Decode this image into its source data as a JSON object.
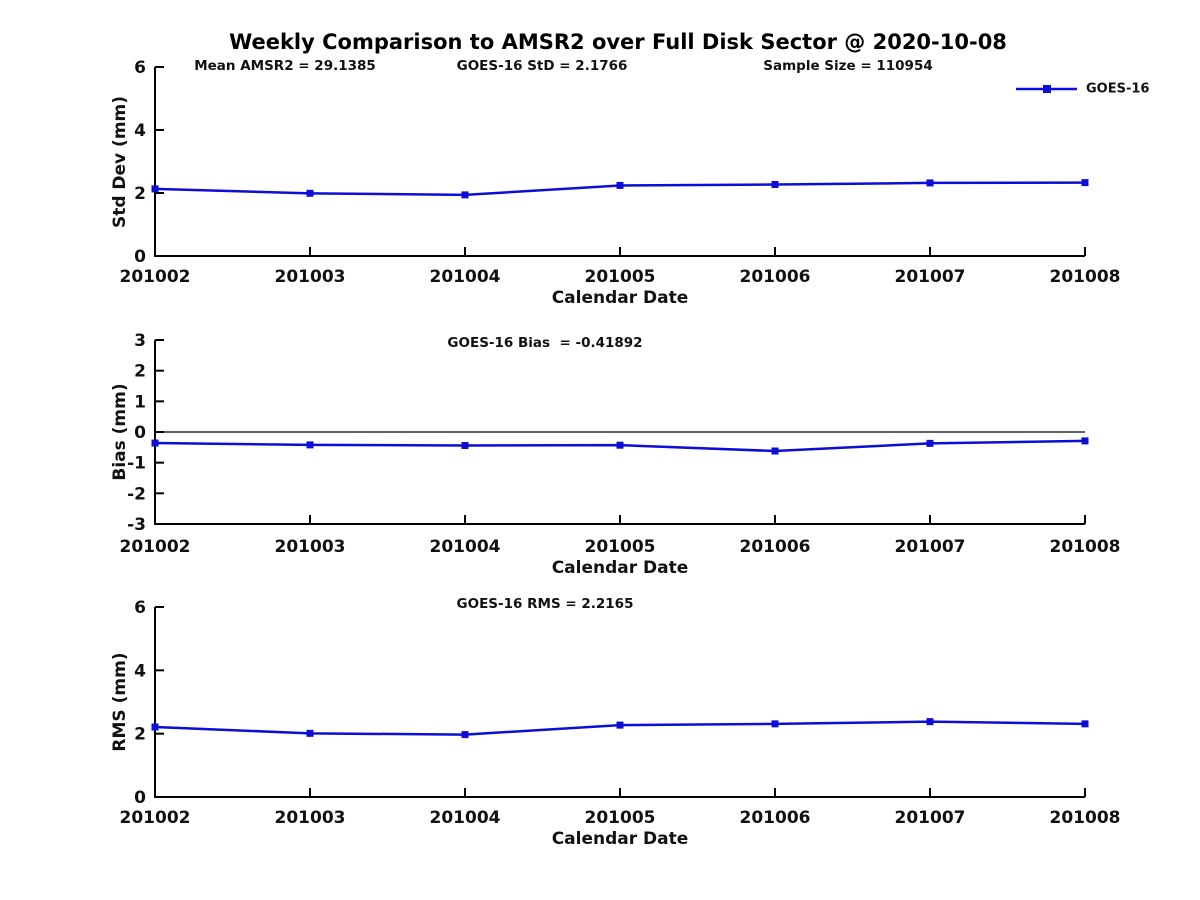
{
  "title": "Weekly Comparison to AMSR2 over Full Disk Sector @ 2020-10-08",
  "legend": {
    "label": "GOES-16",
    "color": "#0d0dd8"
  },
  "axis_color": "#000000",
  "chart_data": [
    {
      "type": "line",
      "x": [
        "201002",
        "201003",
        "201004",
        "201005",
        "201006",
        "201007",
        "201008"
      ],
      "series": [
        {
          "name": "GOES-16",
          "values": [
            2.13,
            1.99,
            1.94,
            2.24,
            2.27,
            2.32,
            2.33
          ]
        }
      ],
      "annotations": [
        "Mean AMSR2 = 29.1385",
        "GOES-16 StD = 2.1766",
        "Sample Size = 110954"
      ],
      "xlabel": "Calendar Date",
      "ylabel": "Std Dev (mm)",
      "ylim": [
        0,
        6
      ],
      "yticks": [
        0,
        2,
        4,
        6
      ],
      "zero_line": false,
      "marker": "square",
      "legend_position": "top-right-outside",
      "grid": false
    },
    {
      "type": "line",
      "x": [
        "201002",
        "201003",
        "201004",
        "201005",
        "201006",
        "201007",
        "201008"
      ],
      "series": [
        {
          "name": "GOES-16",
          "values": [
            -0.36,
            -0.42,
            -0.44,
            -0.43,
            -0.62,
            -0.37,
            -0.29
          ]
        }
      ],
      "annotations": [
        "GOES-16 Bias  = -0.41892"
      ],
      "xlabel": "Calendar Date",
      "ylabel": "Bias (mm)",
      "ylim": [
        -3,
        3
      ],
      "yticks": [
        -3,
        -2,
        -1,
        0,
        1,
        2,
        3
      ],
      "zero_line": true,
      "marker": "square",
      "grid": false
    },
    {
      "type": "line",
      "x": [
        "201002",
        "201003",
        "201004",
        "201005",
        "201006",
        "201007",
        "201008"
      ],
      "series": [
        {
          "name": "GOES-16",
          "values": [
            2.21,
            2.01,
            1.97,
            2.27,
            2.31,
            2.38,
            2.31
          ]
        }
      ],
      "annotations": [
        "GOES-16 RMS = 2.2165"
      ],
      "xlabel": "Calendar Date",
      "ylabel": "RMS (mm)",
      "ylim": [
        0,
        6
      ],
      "yticks": [
        0,
        2,
        4,
        6
      ],
      "zero_line": false,
      "marker": "square",
      "grid": false
    }
  ]
}
